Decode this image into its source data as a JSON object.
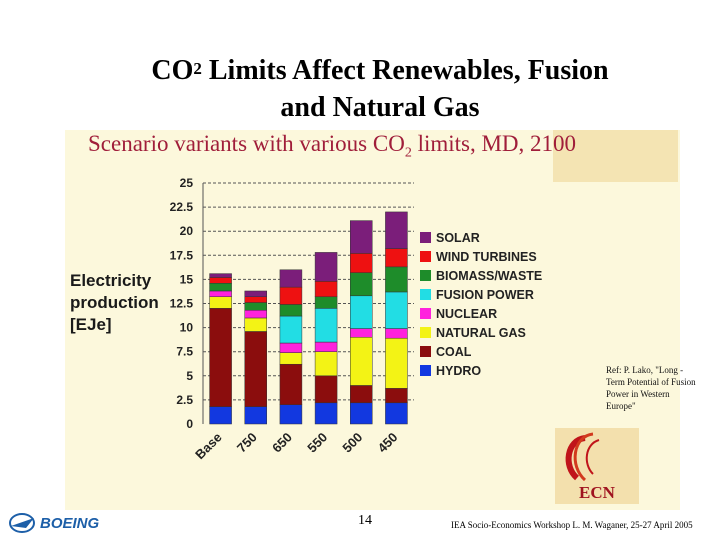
{
  "slide": {
    "title_prefix": "CO",
    "title_sup": "2",
    "title_rest": " Limits Affect Renewables, Fusion",
    "title_line2": "and Natural Gas",
    "page_number": "14",
    "footer_text": "IEA Socio-Economics Workshop   L. M. Waganer, 25-27 April 2005",
    "reference": "Ref: P. Lako, \"Long - Term Potential of Fusion Power in Western Europe\"",
    "boeing_logo_text": "BOEING",
    "ecn_logo_text": "ECN"
  },
  "colors": {
    "SOLAR": "#7b1e7a",
    "WIND TURBINES": "#ee1111",
    "BIOMASS/WASTE": "#1e8c2a",
    "FUSION POWER": "#22dde4",
    "NUCLEAR": "#ff22dd",
    "NATURAL GAS": "#f3f315",
    "COAL": "#8b0d0d",
    "HYDRO": "#1238e0",
    "title": "#a01e3a",
    "panel": "#fcf8dc",
    "boeing": "#1d5fa8"
  },
  "chart_data": {
    "type": "bar",
    "stacked": true,
    "title_prefix": "Scenario variants with various CO",
    "title_sub": "2",
    "title_suffix": " limits, MD, 2100",
    "ylabel_lines": [
      "Electricity",
      "production",
      "[EJe]"
    ],
    "categories": [
      "Base",
      "750",
      "650",
      "550",
      "500",
      "450"
    ],
    "ylim": [
      0,
      25
    ],
    "yticks": [
      "0",
      "2.5",
      "5",
      "7.5",
      "10",
      "12.5",
      "15",
      "17.5",
      "20",
      "22.5",
      "25"
    ],
    "grid": true,
    "legend_position": "right",
    "legend_order": [
      "SOLAR",
      "WIND TURBINES",
      "BIOMASS/WASTE",
      "FUSION POWER",
      "NUCLEAR",
      "NATURAL GAS",
      "COAL",
      "HYDRO"
    ],
    "series": [
      {
        "name": "HYDRO",
        "values": [
          1.8,
          1.8,
          2.0,
          2.2,
          2.2,
          2.2
        ]
      },
      {
        "name": "COAL",
        "values": [
          10.2,
          7.8,
          4.2,
          2.8,
          1.8,
          1.5
        ]
      },
      {
        "name": "NATURAL GAS",
        "values": [
          1.2,
          1.4,
          1.2,
          2.5,
          5.0,
          5.2
        ]
      },
      {
        "name": "NUCLEAR",
        "values": [
          0.6,
          0.8,
          1.0,
          1.0,
          0.9,
          1.0
        ]
      },
      {
        "name": "FUSION POWER",
        "values": [
          0,
          0,
          2.8,
          3.5,
          3.4,
          3.8
        ]
      },
      {
        "name": "BIOMASS/WASTE",
        "values": [
          0.8,
          0.8,
          1.2,
          1.2,
          2.4,
          2.6
        ]
      },
      {
        "name": "WIND TURBINES",
        "values": [
          0.6,
          0.6,
          1.8,
          1.6,
          2.0,
          1.9
        ]
      },
      {
        "name": "SOLAR",
        "values": [
          0.4,
          0.6,
          1.8,
          3.0,
          3.4,
          3.8
        ]
      }
    ]
  }
}
